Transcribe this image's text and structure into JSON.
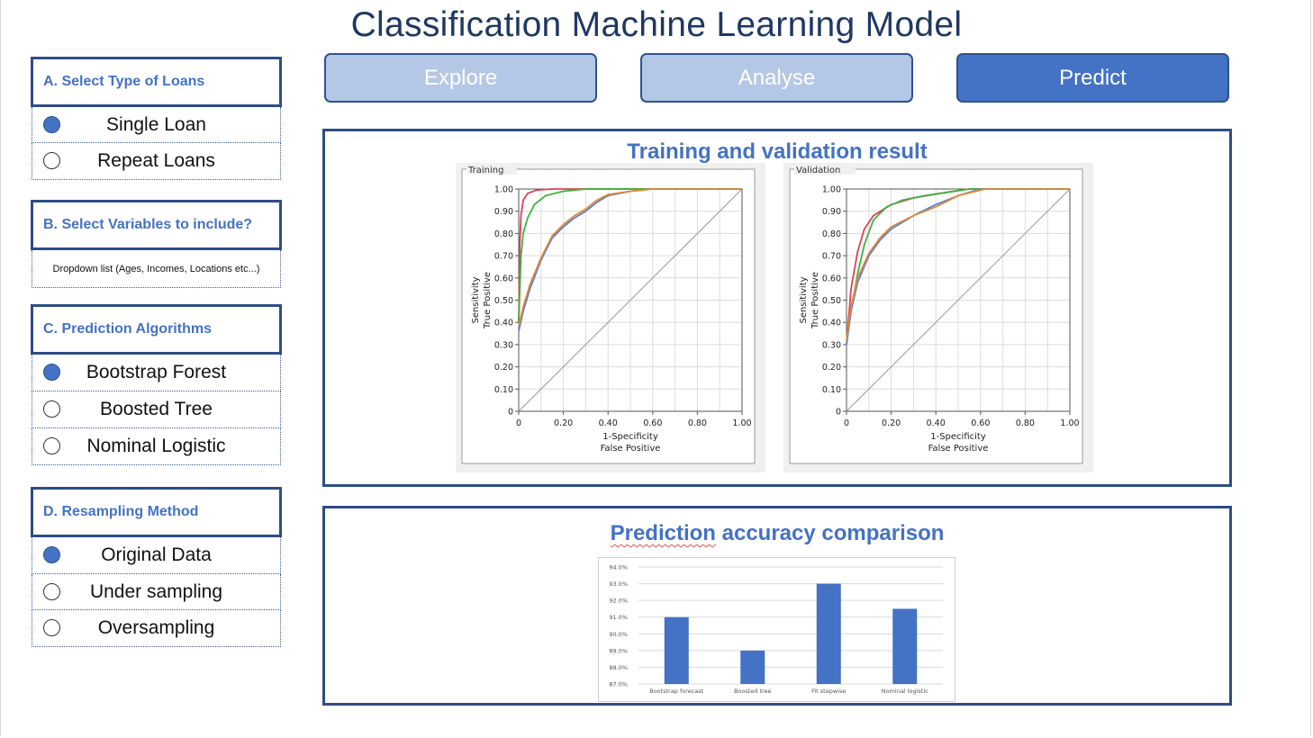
{
  "page": {
    "title": "Classification Machine Learning Model"
  },
  "tabs": [
    {
      "label": "Explore",
      "active": false
    },
    {
      "label": "Analyse",
      "active": false
    },
    {
      "label": "Predict",
      "active": true
    }
  ],
  "sidebar": {
    "loans": {
      "heading": "A. Select Type of Loans",
      "options": [
        {
          "label": "Single Loan",
          "selected": true
        },
        {
          "label": "Repeat Loans",
          "selected": false
        }
      ]
    },
    "variables": {
      "heading": "B. Select Variables to include?",
      "dropdown_text": "Dropdown list (Ages, Incomes, Locations etc...)"
    },
    "algorithms": {
      "heading": "C. Prediction Algorithms",
      "options": [
        {
          "label": "Bootstrap Forest",
          "selected": true
        },
        {
          "label": "Boosted Tree",
          "selected": false
        },
        {
          "label": "Nominal Logistic",
          "selected": false
        }
      ]
    },
    "resampling": {
      "heading": "D. Resampling Method",
      "options": [
        {
          "label": "Original Data",
          "selected": true
        },
        {
          "label": "Under sampling",
          "selected": false
        },
        {
          "label": "Oversampling",
          "selected": false
        }
      ]
    }
  },
  "roc_panel": {
    "title": "Training and validation result"
  },
  "accuracy_panel": {
    "title_first": "Prediction",
    "title_rest": " accuracy comparison"
  },
  "colors": {
    "accent": "#4472c4",
    "dark_border": "#2e4d87",
    "title": "#1f3864",
    "tab_inactive": "#b4c7e7"
  },
  "chart_data": [
    {
      "type": "line",
      "title": "Training",
      "xlabel": "1-Specificity",
      "xlabel2": "False Positive",
      "ylabel": "Sensitivity",
      "ylabel2": "True Positive",
      "xlim": [
        0,
        1
      ],
      "ylim": [
        0,
        1
      ],
      "x_ticks": [
        "0",
        "0.20",
        "0.40",
        "0.60",
        "0.80",
        "1.00"
      ],
      "y_ticks": [
        "0",
        "0.10",
        "0.20",
        "0.30",
        "0.40",
        "0.50",
        "0.60",
        "0.70",
        "0.80",
        "0.90",
        "1.00"
      ],
      "grid": true,
      "series": [
        {
          "color": "#e0405a",
          "points": [
            [
              0,
              0.4
            ],
            [
              0.005,
              0.75
            ],
            [
              0.01,
              0.88
            ],
            [
              0.02,
              0.95
            ],
            [
              0.04,
              0.98
            ],
            [
              0.08,
              0.995
            ],
            [
              0.15,
              1
            ],
            [
              1,
              1
            ]
          ]
        },
        {
          "color": "#3cb43c",
          "points": [
            [
              0,
              0.4
            ],
            [
              0.01,
              0.7
            ],
            [
              0.02,
              0.8
            ],
            [
              0.04,
              0.87
            ],
            [
              0.07,
              0.93
            ],
            [
              0.12,
              0.97
            ],
            [
              0.2,
              0.99
            ],
            [
              0.3,
              1
            ],
            [
              1,
              1
            ]
          ]
        },
        {
          "color": "#5b7fd6",
          "points": [
            [
              0,
              0.36
            ],
            [
              0.02,
              0.45
            ],
            [
              0.05,
              0.55
            ],
            [
              0.1,
              0.68
            ],
            [
              0.15,
              0.78
            ],
            [
              0.2,
              0.83
            ],
            [
              0.25,
              0.87
            ],
            [
              0.3,
              0.9
            ],
            [
              0.35,
              0.94
            ],
            [
              0.4,
              0.97
            ],
            [
              0.5,
              0.99
            ],
            [
              0.6,
              1
            ],
            [
              1,
              1
            ]
          ]
        },
        {
          "color": "#e08a30",
          "points": [
            [
              0,
              0.38
            ],
            [
              0.02,
              0.47
            ],
            [
              0.05,
              0.57
            ],
            [
              0.1,
              0.69
            ],
            [
              0.15,
              0.79
            ],
            [
              0.2,
              0.84
            ],
            [
              0.25,
              0.88
            ],
            [
              0.3,
              0.91
            ],
            [
              0.35,
              0.95
            ],
            [
              0.4,
              0.975
            ],
            [
              0.5,
              0.99
            ],
            [
              0.6,
              1
            ],
            [
              1,
              1
            ]
          ]
        },
        {
          "color": "#999999",
          "points": [
            [
              0,
              0
            ],
            [
              1,
              1
            ]
          ]
        }
      ]
    },
    {
      "type": "line",
      "title": "Validation",
      "xlabel": "1-Specificity",
      "xlabel2": "False Positive",
      "ylabel": "Sensitivity",
      "ylabel2": "True Positive",
      "xlim": [
        0,
        1
      ],
      "ylim": [
        0,
        1
      ],
      "x_ticks": [
        "0",
        "0.20",
        "0.40",
        "0.60",
        "0.80",
        "1.00"
      ],
      "y_ticks": [
        "0",
        "0.10",
        "0.20",
        "0.30",
        "0.40",
        "0.50",
        "0.60",
        "0.70",
        "0.80",
        "0.90",
        "1.00"
      ],
      "grid": true,
      "series": [
        {
          "color": "#e0405a",
          "points": [
            [
              0,
              0.3
            ],
            [
              0.02,
              0.55
            ],
            [
              0.05,
              0.72
            ],
            [
              0.08,
              0.82
            ],
            [
              0.12,
              0.88
            ],
            [
              0.2,
              0.93
            ],
            [
              0.3,
              0.96
            ],
            [
              0.45,
              0.985
            ],
            [
              0.55,
              1
            ],
            [
              1,
              1
            ]
          ]
        },
        {
          "color": "#3cb43c",
          "points": [
            [
              0,
              0.3
            ],
            [
              0.02,
              0.45
            ],
            [
              0.05,
              0.62
            ],
            [
              0.08,
              0.75
            ],
            [
              0.12,
              0.86
            ],
            [
              0.18,
              0.92
            ],
            [
              0.25,
              0.95
            ],
            [
              0.35,
              0.97
            ],
            [
              0.45,
              0.985
            ],
            [
              0.55,
              1
            ],
            [
              1,
              1
            ]
          ]
        },
        {
          "color": "#5b7fd6",
          "points": [
            [
              0,
              0.3
            ],
            [
              0.02,
              0.45
            ],
            [
              0.05,
              0.58
            ],
            [
              0.1,
              0.7
            ],
            [
              0.15,
              0.77
            ],
            [
              0.2,
              0.82
            ],
            [
              0.3,
              0.88
            ],
            [
              0.4,
              0.93
            ],
            [
              0.5,
              0.97
            ],
            [
              0.6,
              1
            ],
            [
              1,
              1
            ]
          ]
        },
        {
          "color": "#e08a30",
          "points": [
            [
              0,
              0.32
            ],
            [
              0.02,
              0.47
            ],
            [
              0.05,
              0.6
            ],
            [
              0.1,
              0.71
            ],
            [
              0.15,
              0.78
            ],
            [
              0.2,
              0.83
            ],
            [
              0.3,
              0.88
            ],
            [
              0.4,
              0.92
            ],
            [
              0.5,
              0.97
            ],
            [
              0.62,
              1
            ],
            [
              1,
              1
            ]
          ]
        },
        {
          "color": "#999999",
          "points": [
            [
              0,
              0
            ],
            [
              1,
              1
            ]
          ]
        }
      ]
    },
    {
      "type": "bar",
      "categories": [
        "Bootstrap forecast",
        "Boosted tree",
        "Fit stepwise",
        "Nominal logistic"
      ],
      "values": [
        91.0,
        89.0,
        93.0,
        91.5
      ],
      "ylim": [
        87.0,
        94.0
      ],
      "y_ticks": [
        "87.0%",
        "88.0%",
        "89.0%",
        "90.0%",
        "91.0%",
        "92.0%",
        "93.0%",
        "94.0%"
      ],
      "bar_color": "#4472c4",
      "grid": true
    }
  ]
}
